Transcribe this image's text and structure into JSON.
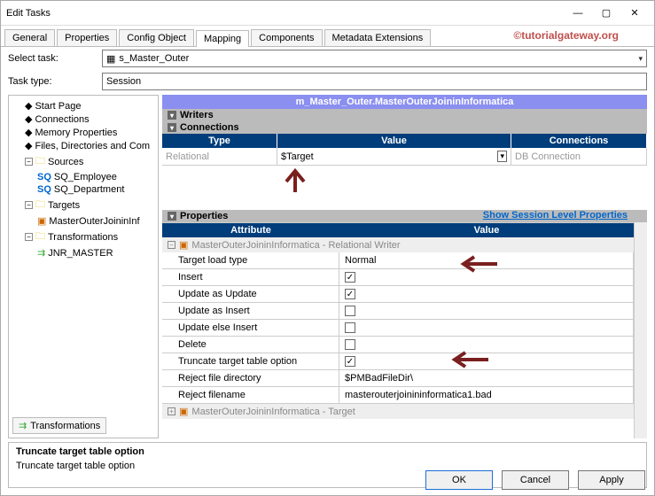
{
  "window": {
    "title": "Edit Tasks"
  },
  "watermark": "©tutorialgateway.org",
  "tabs": [
    "General",
    "Properties",
    "Config Object",
    "Mapping",
    "Components",
    "Metadata Extensions"
  ],
  "active_tab": "Mapping",
  "select_task": {
    "label": "Select task:",
    "value": "s_Master_Outer"
  },
  "task_type": {
    "label": "Task type:",
    "value": "Session"
  },
  "tree": {
    "start_page": "Start Page",
    "connections": "Connections",
    "memory_props": "Memory Properties",
    "files_dirs": "Files, Directories and Com",
    "sources": "Sources",
    "sq_employee": "SQ_Employee",
    "sq_department": "SQ_Department",
    "targets": "Targets",
    "target1": "MasterOuterJoininInf",
    "transformations": "Transformations",
    "jnr": "JNR_MASTER"
  },
  "bottom_tab": "Transformations",
  "mapping_title": "m_Master_Outer.MasterOuterJoininInformatica",
  "writers_label": "Writers",
  "connections_label": "Connections",
  "conn_grid": {
    "headers": {
      "type": "Type",
      "value": "Value",
      "connections": "Connections"
    },
    "row": {
      "type": "Relational",
      "value": "$Target",
      "conn": "DB Connection"
    },
    "col_widths": {
      "type": 130,
      "value": 264,
      "conn": 150
    }
  },
  "props_label": "Properties",
  "props_link": "Show Session Level Properties",
  "attr_headers": {
    "attribute": "Attribute",
    "value": "Value"
  },
  "attr_group1": "MasterOuterJoininInformatica - Relational Writer",
  "attrs": [
    {
      "name": "Target load type",
      "value": "Normal",
      "type": "text"
    },
    {
      "name": "Insert",
      "value": true,
      "type": "check"
    },
    {
      "name": "Update as Update",
      "value": true,
      "type": "check"
    },
    {
      "name": "Update as Insert",
      "value": false,
      "type": "check"
    },
    {
      "name": "Update else Insert",
      "value": false,
      "type": "check"
    },
    {
      "name": "Delete",
      "value": false,
      "type": "check"
    },
    {
      "name": "Truncate target table option",
      "value": true,
      "type": "check"
    },
    {
      "name": "Reject file directory",
      "value": "$PMBadFileDir\\",
      "type": "text"
    },
    {
      "name": "Reject filename",
      "value": "masterouterjoinininformatica1.bad",
      "type": "text"
    }
  ],
  "attr_group2": "MasterOuterJoininInformatica - Target",
  "description": {
    "title": "Truncate target table option",
    "body": "Truncate target table option"
  },
  "buttons": {
    "ok": "OK",
    "cancel": "Cancel",
    "apply": "Apply"
  },
  "colors": {
    "header_blue": "#003d7a",
    "section_purple": "#8a8ff0",
    "arrow": "#7a1f1f"
  }
}
